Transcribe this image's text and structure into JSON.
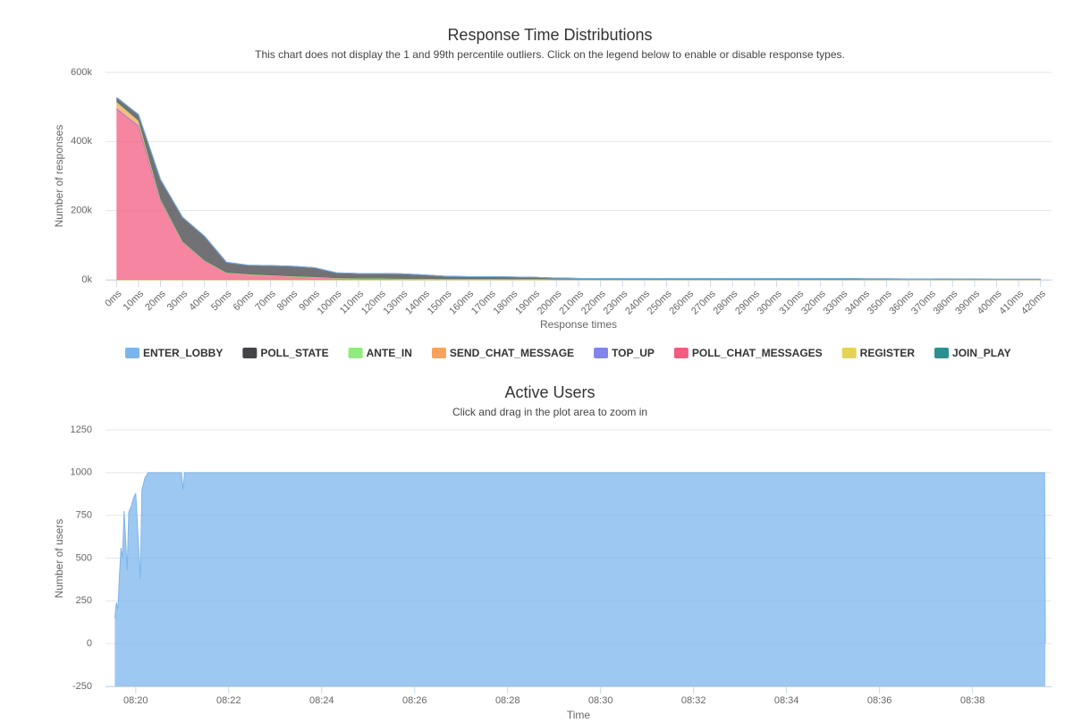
{
  "chart_data": [
    {
      "type": "stacked_area",
      "title": "Response Time Distributions",
      "subtitle": "This chart does not display the 1 and 99th percentile outliers. Click on the legend below to enable or disable response types.",
      "x_label": "Response times",
      "y_label": "Number of responses",
      "categories": [
        "0ms",
        "10ms",
        "20ms",
        "30ms",
        "40ms",
        "50ms",
        "60ms",
        "70ms",
        "80ms",
        "90ms",
        "100ms",
        "110ms",
        "120ms",
        "130ms",
        "140ms",
        "150ms",
        "160ms",
        "170ms",
        "180ms",
        "190ms",
        "200ms",
        "210ms",
        "220ms",
        "230ms",
        "240ms",
        "250ms",
        "260ms",
        "270ms",
        "280ms",
        "290ms",
        "300ms",
        "310ms",
        "320ms",
        "330ms",
        "340ms",
        "350ms",
        "360ms",
        "370ms",
        "380ms",
        "390ms",
        "400ms",
        "410ms",
        "420ms"
      ],
      "series": [
        {
          "name": "ENTER_LOBBY",
          "color": "#7cb5ec",
          "values": [
            0,
            0,
            0,
            0,
            0,
            0,
            0,
            0,
            0,
            0,
            0,
            0,
            0,
            0,
            0,
            0,
            0,
            0,
            0,
            0,
            0,
            0,
            0,
            0,
            0,
            0,
            0,
            0,
            0,
            0,
            0,
            0,
            0,
            0,
            0,
            0,
            0,
            0,
            0,
            0,
            0,
            0,
            0
          ]
        },
        {
          "name": "POLL_STATE",
          "color": "#434348",
          "values": [
            13000,
            18000,
            57000,
            70000,
            70000,
            30000,
            26000,
            28000,
            29000,
            27000,
            15000,
            14000,
            14000,
            14000,
            11000,
            8000,
            7000,
            7000,
            6500,
            5500,
            4000,
            3000,
            3000,
            3000,
            3000,
            3000,
            3000,
            3000,
            3000,
            3000,
            3000,
            3000,
            3000,
            3000,
            2500,
            2500,
            2000,
            2000,
            1500,
            1500,
            1000,
            1000,
            1000
          ]
        },
        {
          "name": "ANTE_IN",
          "color": "#90ed7d",
          "values": [
            0,
            0,
            0,
            0,
            0,
            0,
            0,
            0,
            0,
            0,
            0,
            0,
            0,
            0,
            0,
            0,
            0,
            0,
            0,
            0,
            0,
            0,
            0,
            0,
            0,
            0,
            0,
            0,
            0,
            0,
            0,
            0,
            0,
            0,
            0,
            0,
            0,
            0,
            0,
            0,
            0,
            0,
            0
          ]
        },
        {
          "name": "SEND_CHAT_MESSAGE",
          "color": "#f7a35c",
          "values": [
            20000,
            15000,
            3000,
            1000,
            1000,
            500,
            0,
            0,
            0,
            0,
            0,
            0,
            0,
            0,
            0,
            0,
            0,
            0,
            0,
            0,
            0,
            0,
            0,
            0,
            0,
            0,
            0,
            0,
            0,
            0,
            0,
            0,
            0,
            0,
            0,
            0,
            0,
            0,
            0,
            0,
            0,
            0,
            0
          ]
        },
        {
          "name": "TOP_UP",
          "color": "#8085e9",
          "values": [
            0,
            0,
            0,
            0,
            0,
            0,
            0,
            0,
            0,
            0,
            0,
            0,
            0,
            0,
            0,
            0,
            0,
            0,
            0,
            0,
            0,
            0,
            0,
            0,
            0,
            0,
            0,
            0,
            0,
            0,
            0,
            0,
            0,
            0,
            0,
            0,
            0,
            0,
            0,
            0,
            0,
            0,
            0
          ]
        },
        {
          "name": "POLL_CHAT_MESSAGES",
          "color": "#f15c80",
          "values": [
            495000,
            445000,
            230000,
            110000,
            55000,
            20000,
            16000,
            13000,
            10000,
            8000,
            5000,
            4000,
            4000,
            3000,
            3000,
            2000,
            2000,
            2000,
            1500,
            1500,
            1000,
            1000,
            1000,
            1000,
            1000,
            1000,
            1000,
            1000,
            1000,
            1000,
            1000,
            1000,
            1000,
            1000,
            500,
            500,
            500,
            500,
            500,
            500,
            500,
            500,
            500
          ]
        },
        {
          "name": "REGISTER",
          "color": "#e4d354",
          "values": [
            0,
            0,
            0,
            0,
            0,
            0,
            0,
            0,
            0,
            0,
            0,
            0,
            0,
            0,
            0,
            0,
            0,
            0,
            0,
            0,
            0,
            0,
            0,
            0,
            0,
            0,
            0,
            0,
            0,
            0,
            0,
            0,
            0,
            0,
            0,
            0,
            0,
            0,
            0,
            0,
            0,
            0,
            0
          ]
        },
        {
          "name": "JOIN_PLAY",
          "color": "#2b908f",
          "values": [
            0,
            0,
            0,
            0,
            0,
            0,
            0,
            0,
            0,
            0,
            0,
            0,
            0,
            0,
            0,
            0,
            0,
            0,
            0,
            0,
            0,
            0,
            0,
            0,
            0,
            0,
            0,
            0,
            0,
            0,
            0,
            0,
            0,
            0,
            0,
            0,
            0,
            0,
            0,
            0,
            0,
            0,
            0
          ]
        }
      ],
      "ylim": [
        0,
        600000
      ],
      "yticks": [
        {
          "value": 0,
          "label": "0k"
        },
        {
          "value": 200000,
          "label": "200k"
        },
        {
          "value": 400000,
          "label": "400k"
        },
        {
          "value": 600000,
          "label": "600k"
        }
      ],
      "grid": true,
      "legend": "bottom"
    },
    {
      "type": "area",
      "title": "Active Users",
      "subtitle": "Click and drag in the plot area to zoom in",
      "x_label": "Time",
      "y_label": "Number of users",
      "x": [
        "08:19:33",
        "08:19:35",
        "08:19:37",
        "08:19:39",
        "08:19:41",
        "08:19:43",
        "08:19:45",
        "08:19:47",
        "08:19:49",
        "08:19:51",
        "08:19:54",
        "08:19:57",
        "08:20:00",
        "08:20:06",
        "08:20:08",
        "08:20:12",
        "08:20:16",
        "08:20:59",
        "08:21:01",
        "08:21:03",
        "08:39:33",
        "08:39:34"
      ],
      "series": [
        {
          "name": "Active Users",
          "color": "#7cb5ec",
          "values": [
            150,
            240,
            200,
            400,
            560,
            500,
            775,
            600,
            430,
            770,
            800,
            850,
            880,
            380,
            900,
            970,
            1000,
            1000,
            900,
            1000,
            1000,
            0
          ]
        }
      ],
      "xlim": [
        "08:19:21",
        "08:39:42"
      ],
      "xticks": [
        "08:20",
        "08:22",
        "08:24",
        "08:26",
        "08:28",
        "08:30",
        "08:32",
        "08:34",
        "08:36",
        "08:38"
      ],
      "ylim": [
        -250,
        1250
      ],
      "yticks": [
        -250,
        0,
        250,
        500,
        750,
        1000,
        1250
      ],
      "grid": true
    }
  ]
}
